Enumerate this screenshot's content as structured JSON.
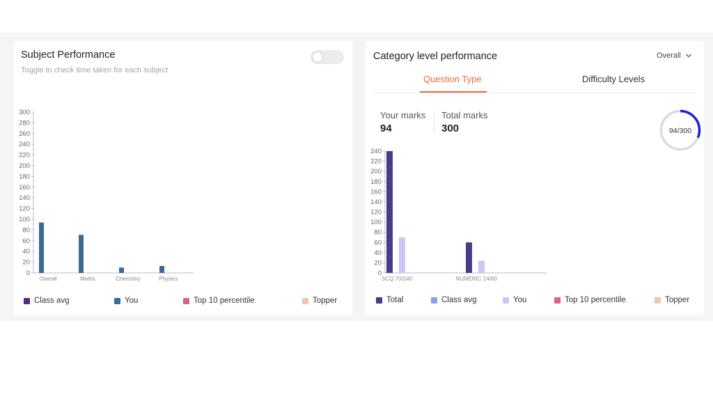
{
  "subject_card": {
    "title": "Subject Performance",
    "subtitle": "Toggle to check time taken for each subject",
    "toggle_on": false,
    "legend": [
      {
        "label": "Class avg",
        "color": "#4b2d83"
      },
      {
        "label": "You",
        "color": "#3b6a94"
      },
      {
        "label": "Top 10 percentile",
        "color": "#d9637e"
      },
      {
        "label": "Topper",
        "color": "#f5c2b0"
      }
    ]
  },
  "category_card": {
    "title": "Category level performance",
    "dropdown_value": "Overall",
    "tabs": [
      {
        "label": "Question Type",
        "active": true
      },
      {
        "label": "Difficulty Levels",
        "active": false
      }
    ],
    "your_marks_label": "Your marks",
    "your_marks_value": "94",
    "total_marks_label": "Total marks",
    "total_marks_value": "300",
    "ring_label": "94/300",
    "ring_fraction": 0.313,
    "legend": [
      {
        "label": "Total",
        "color": "#4b3a8a"
      },
      {
        "label": "Class avg",
        "color": "#8f9ee6"
      },
      {
        "label": "You",
        "color": "#cdc3f5"
      },
      {
        "label": "Top 10 percentile",
        "color": "#d9637e"
      },
      {
        "label": "Topper",
        "color": "#f5c2b0"
      }
    ]
  },
  "chart_data": [
    {
      "type": "bar",
      "title": "Subject Performance",
      "categories": [
        "Overall",
        "Maths",
        "Chemistry",
        "Physics"
      ],
      "ylim": [
        0,
        300
      ],
      "yticks": [
        0,
        20,
        40,
        60,
        80,
        100,
        120,
        140,
        160,
        180,
        200,
        220,
        240,
        260,
        280,
        300
      ],
      "series": [
        {
          "name": "You",
          "color": "#3b6a94",
          "values": [
            94,
            71,
            10,
            13
          ]
        }
      ]
    },
    {
      "type": "bar",
      "title": "Question Type",
      "categories": [
        "SCQ 70/240",
        "NUMERIC 24/60"
      ],
      "ylim": [
        0,
        240
      ],
      "yticks": [
        0,
        20,
        40,
        60,
        80,
        100,
        120,
        140,
        160,
        180,
        200,
        220,
        240
      ],
      "series": [
        {
          "name": "Total",
          "color": "#4b3a8a",
          "values": [
            240,
            60
          ]
        },
        {
          "name": "You",
          "color": "#cdc3f5",
          "values": [
            70,
            24
          ]
        }
      ]
    }
  ]
}
